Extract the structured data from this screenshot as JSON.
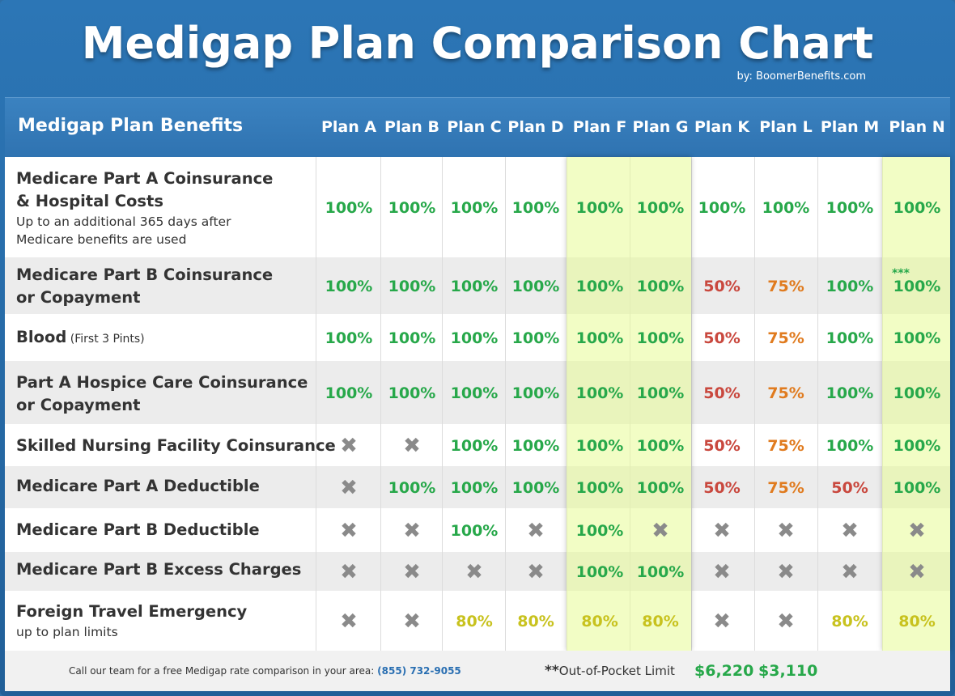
{
  "header": {
    "title": "Medigap Plan Comparison Chart",
    "byline": "by: BoomerBenefits.com",
    "benefits_header": "Medigap Plan Benefits"
  },
  "chart_data": {
    "type": "table",
    "columns": [
      "Plan A",
      "Plan B",
      "Plan C",
      "Plan D",
      "Plan F",
      "Plan G",
      "Plan K",
      "Plan L",
      "Plan M",
      "Plan N"
    ],
    "highlighted_columns": [
      "Plan F",
      "Plan G",
      "Plan N"
    ],
    "rows": [
      {
        "main": [
          "Medicare Part A Coinsurance",
          "& Hospital Costs"
        ],
        "sub": [
          "Up to an additional 365 days after",
          "Medicare benefits are used"
        ],
        "inline": "",
        "values": [
          "100%",
          "100%",
          "100%",
          "100%",
          "100%",
          "100%",
          "100%",
          "100%",
          "100%",
          "100%"
        ]
      },
      {
        "main": [
          "Medicare Part B Coinsurance",
          "or Copayment"
        ],
        "sub": [],
        "inline": "",
        "values": [
          "100%",
          "100%",
          "100%",
          "100%",
          "100%",
          "100%",
          "50%",
          "75%",
          "100%",
          "100%"
        ],
        "note_plan_n": "***"
      },
      {
        "main": [
          "Blood"
        ],
        "sub": [],
        "inline": "(First 3 Pints)",
        "values": [
          "100%",
          "100%",
          "100%",
          "100%",
          "100%",
          "100%",
          "50%",
          "75%",
          "100%",
          "100%"
        ]
      },
      {
        "main": [
          "Part A Hospice Care Coinsurance",
          "or Copayment"
        ],
        "sub": [],
        "inline": "",
        "values": [
          "100%",
          "100%",
          "100%",
          "100%",
          "100%",
          "100%",
          "50%",
          "75%",
          "100%",
          "100%"
        ]
      },
      {
        "main": [
          "Skilled Nursing Facility Coinsurance"
        ],
        "sub": [],
        "inline": "",
        "values": [
          "X",
          "X",
          "100%",
          "100%",
          "100%",
          "100%",
          "50%",
          "75%",
          "100%",
          "100%"
        ]
      },
      {
        "main": [
          "Medicare Part A Deductible"
        ],
        "sub": [],
        "inline": "",
        "values": [
          "X",
          "100%",
          "100%",
          "100%",
          "100%",
          "100%",
          "50%",
          "75%",
          "50%",
          "100%"
        ]
      },
      {
        "main": [
          "Medicare Part B Deductible"
        ],
        "sub": [],
        "inline": "",
        "values": [
          "X",
          "X",
          "100%",
          "X",
          "100%",
          "X",
          "X",
          "X",
          "X",
          "X"
        ]
      },
      {
        "main": [
          "Medicare Part B Excess Charges"
        ],
        "sub": [],
        "inline": "",
        "values": [
          "X",
          "X",
          "X",
          "X",
          "100%",
          "100%",
          "X",
          "X",
          "X",
          "X"
        ]
      },
      {
        "main": [
          "Foreign Travel Emergency"
        ],
        "sub": [
          "up to plan limits"
        ],
        "inline": "",
        "values": [
          "X",
          "X",
          "80%",
          "80%",
          "80%",
          "80%",
          "X",
          "X",
          "80%",
          "80%"
        ]
      }
    ],
    "out_of_pocket": {
      "label_prefix": "**",
      "label": "Out-of-Pocket Limit",
      "plan_k": "$6,220",
      "plan_l": "$3,110"
    }
  },
  "footer": {
    "text": "Call our team for a free Medigap rate comparison in your area:",
    "phone": "(855) 732-9055"
  },
  "colors": {
    "green": "#27a84a",
    "red": "#c9483e",
    "orange": "#e07b1f",
    "yellow": "#c8c21e",
    "highlight": "#eefbb0",
    "header_blue": "#2f73b1"
  }
}
